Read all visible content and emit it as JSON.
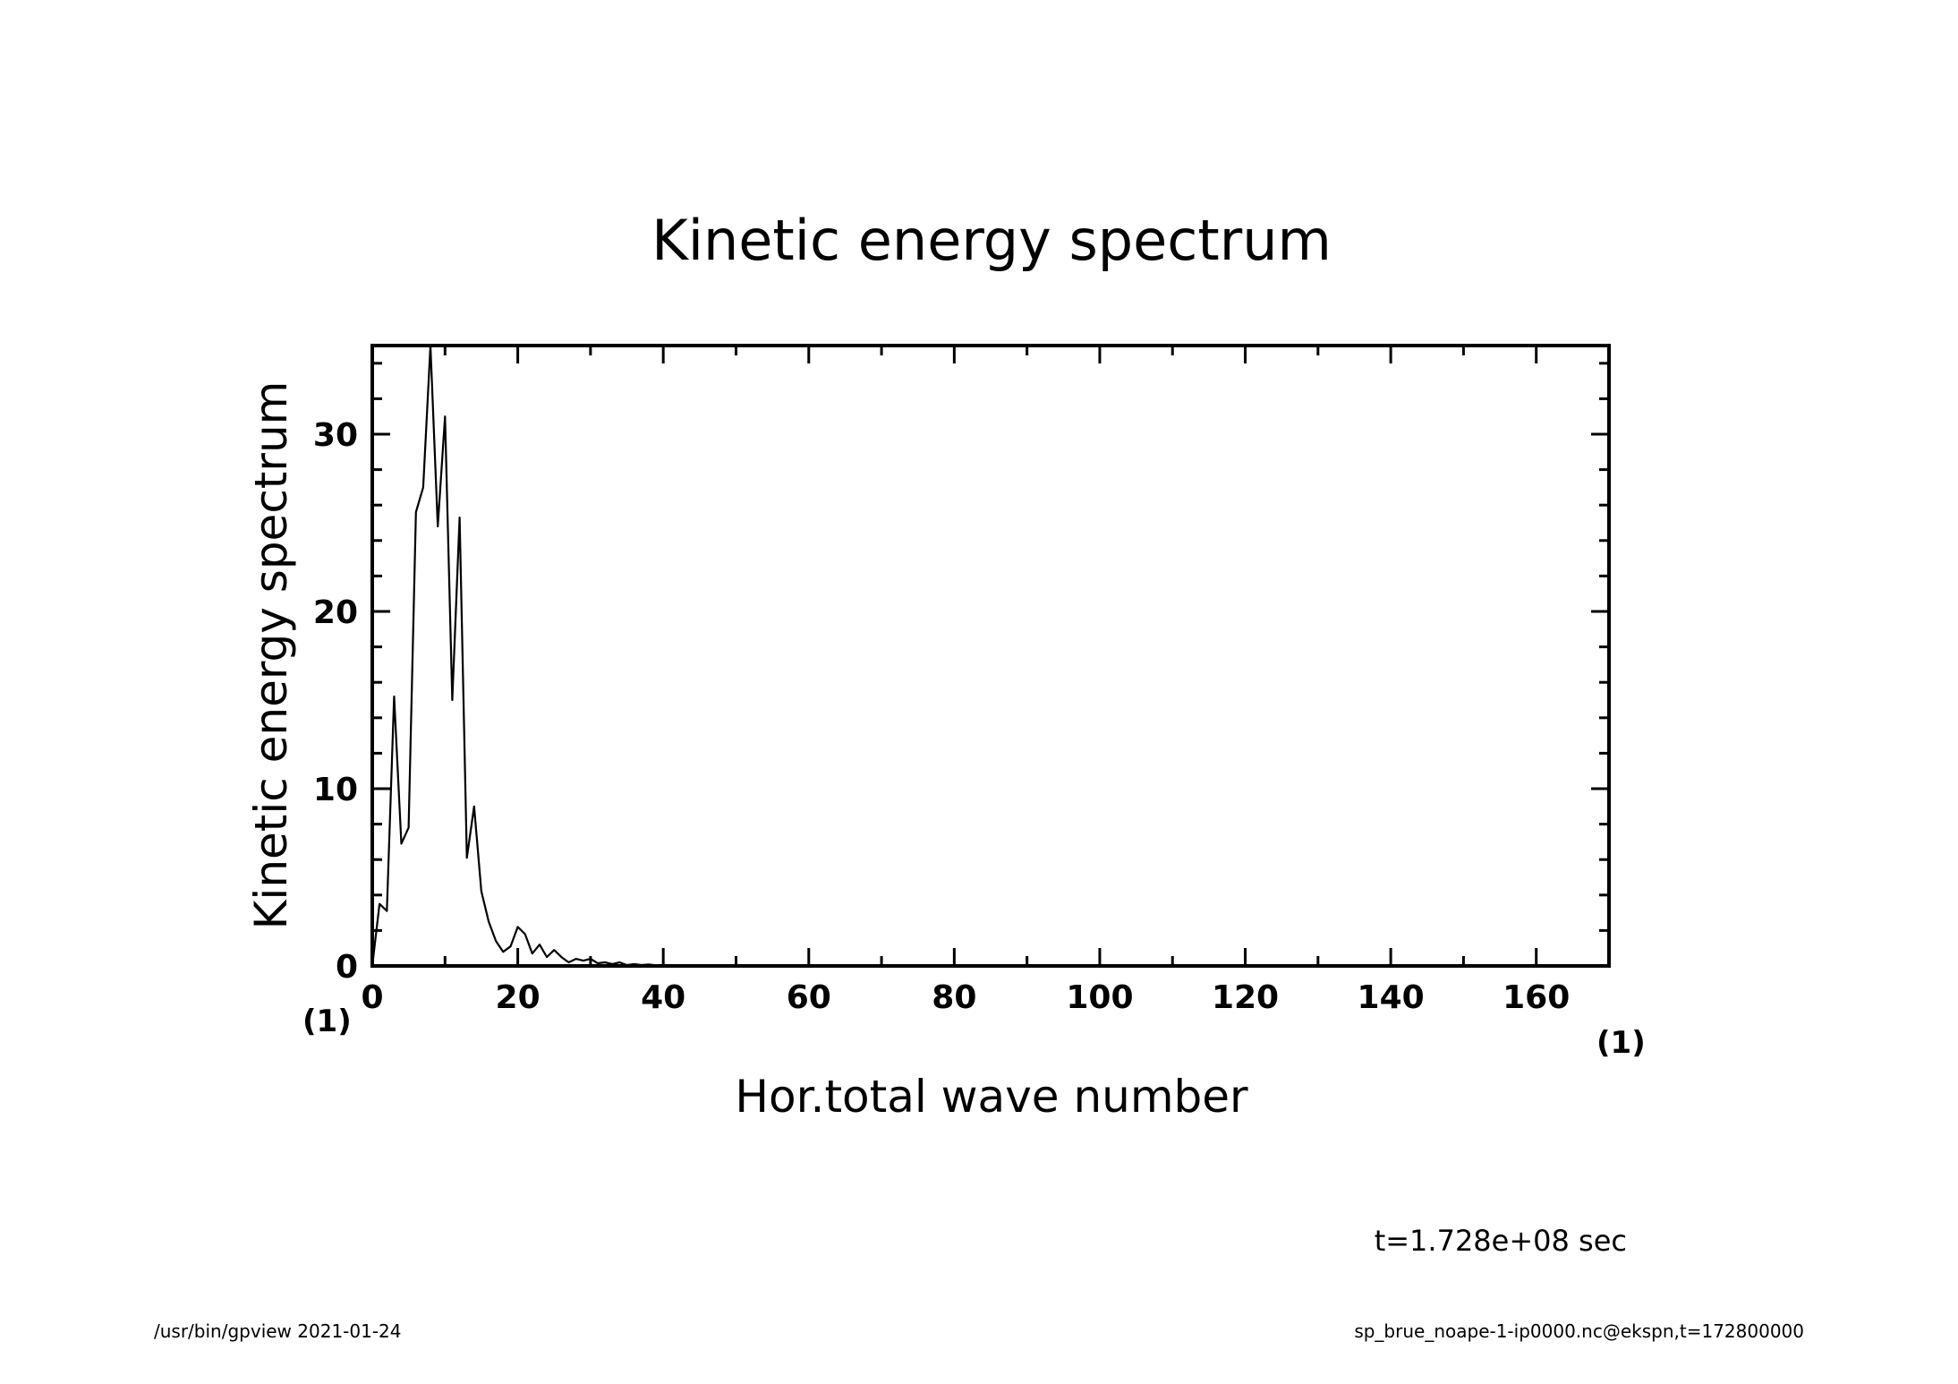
{
  "chart_data": {
    "type": "line",
    "title": "Kinetic energy spectrum",
    "xlabel": "Hor.total wave number",
    "ylabel": "Kinetic energy spectrum",
    "xlim": [
      0,
      170
    ],
    "ylim": [
      0,
      35
    ],
    "x_ticks": [
      0,
      20,
      40,
      60,
      80,
      100,
      120,
      140,
      160
    ],
    "y_ticks": [
      0,
      10,
      20,
      30
    ],
    "x_unit": "(1)",
    "y_unit": "(1)",
    "grid": false,
    "series": [
      {
        "x": [
          0,
          1,
          2,
          3,
          4,
          5,
          6,
          7,
          8,
          9,
          10,
          11,
          12,
          13,
          14,
          15,
          16,
          17,
          18,
          19,
          20,
          21,
          22,
          23,
          24,
          25,
          26,
          27,
          28,
          29,
          30,
          31,
          32,
          33,
          34,
          35,
          36,
          37,
          38,
          39,
          40,
          42,
          44,
          46,
          48,
          50,
          55,
          60,
          70,
          80,
          100,
          120,
          140,
          160,
          170
        ],
        "y": [
          0,
          3.5,
          3.1,
          15.2,
          6.9,
          7.8,
          25.6,
          27,
          35,
          24.8,
          31,
          15,
          25.3,
          6.1,
          9,
          4.2,
          2.5,
          1.4,
          0.8,
          1.1,
          2.2,
          1.8,
          0.7,
          1.2,
          0.5,
          0.9,
          0.5,
          0.2,
          0.4,
          0.3,
          0.4,
          0.15,
          0.2,
          0.1,
          0.2,
          0.05,
          0.1,
          0.05,
          0.08,
          0.03,
          0.05,
          0.03,
          0.02,
          0.02,
          0.01,
          0.01,
          0.01,
          0,
          0,
          0,
          0,
          0,
          0,
          0,
          0
        ]
      }
    ],
    "time_label": "t=1.728e+08 sec",
    "colors": {
      "line": "#000000",
      "frame": "#000000"
    }
  },
  "footer": {
    "left": "/usr/bin/gpview   2021-01-24",
    "right": "sp_brue_noape-1-ip0000.nc@ekspn,t=172800000"
  }
}
